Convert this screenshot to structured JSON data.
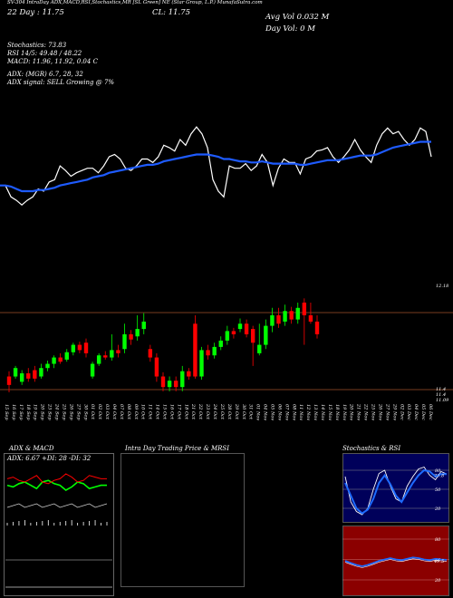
{
  "header": {
    "title_line": "SV-304 IntraDay ADX,MACD,RSI,Stochastics,MR  [SL Green] NE  (Star Group, L.P.) MunafaSutra.com",
    "date_line": "22 Day  : 11.75",
    "close": "CL: 11.75",
    "avg_vol": "Avg Vol 0.032  M",
    "day_vol": "Day Vol: 0  M"
  },
  "indicators": {
    "stochastics": "Stochastics: 73.83",
    "rsi": "RSI 14/5: 49.48 / 48.22",
    "macd": "MACD: 11.96,  11.92,  0.04   C",
    "adx": "ADX:                              (MGR) 6.7,  28,  32",
    "adx_signal": "ADX  signal: SELL  Growing @ 7%"
  },
  "price_labels": {
    "top": "12.18",
    "bottom": [
      "11.4",
      "11.4",
      "11.09"
    ]
  },
  "x_labels": [
    "15 Sep",
    "16 Sep",
    "17 Sep",
    "18 Sep",
    "19 Sep",
    "20 Sep",
    "23 Sep",
    "24 Sep",
    "25 Sep",
    "26 Sep",
    "27 Sep",
    "30 Sep",
    "01 Oct",
    "02 Oct",
    "03 Oct",
    "04 Oct",
    "07 Oct",
    "08 Oct",
    "09 Oct",
    "10 Oct",
    "11 Oct",
    "14 Oct",
    "15 Oct",
    "16 Oct",
    "17 Oct",
    "18 Oct",
    "21 Oct",
    "22 Oct",
    "23 Oct",
    "24 Oct",
    "25 Oct",
    "28 Oct",
    "29 Oct",
    "30 Oct",
    "31 Oct",
    "01 Nov",
    "04 Nov",
    "05 Nov",
    "06 Nov",
    "07 Nov",
    "08 Nov",
    "11 Nov",
    "12 Nov",
    "13 Nov",
    "14 Nov",
    "15 Nov",
    "18 Nov",
    "19 Nov",
    "20 Nov",
    "21 Nov",
    "22 Nov",
    "25 Nov",
    "26 Nov",
    "27 Nov",
    "29 Nov",
    "02 Dec",
    "03 Dec",
    "04 Dec",
    "05 Dec",
    "06 Dec"
  ],
  "panels": {
    "adx_title": "ADX  & MACD",
    "adx_text": "ADX: 6.67  +DI: 28  -DI: 32",
    "intraday_title": "Intra  Day Trading Price  & MRSI",
    "stoch_title": "Stochastics & RSI",
    "stoch_levels": [
      "80",
      "50",
      "20"
    ],
    "rsi_levels": [
      "80",
      "50",
      "20"
    ],
    "stoch_value": "73.8",
    "rsi_value": "49.5"
  },
  "colors": {
    "up": "#00ff00",
    "down": "#ff0000",
    "ma": "#1e5bff",
    "rsi_bg": "#8b0000",
    "stoch_bg": "#00005a",
    "level_line": "#a0522d"
  },
  "chart_data": {
    "type": "candlestick",
    "note_series": "price line (white) and moving average (blue)",
    "price_line": [
      11.55,
      11.55,
      11.45,
      11.42,
      11.38,
      11.42,
      11.45,
      11.52,
      11.5,
      11.58,
      11.6,
      11.72,
      11.68,
      11.63,
      11.66,
      11.68,
      11.7,
      11.7,
      11.66,
      11.72,
      11.8,
      11.82,
      11.78,
      11.7,
      11.68,
      11.72,
      11.78,
      11.78,
      11.75,
      11.8,
      11.9,
      11.88,
      11.85,
      11.95,
      11.9,
      12.0,
      12.06,
      12.0,
      11.88,
      11.6,
      11.5,
      11.45,
      11.72,
      11.7,
      11.7,
      11.74,
      11.68,
      11.72,
      11.82,
      11.75,
      11.55,
      11.7,
      11.78,
      11.75,
      11.75,
      11.65,
      11.78,
      11.8,
      11.85,
      11.86,
      11.88,
      11.8,
      11.75,
      11.8,
      11.86,
      11.95,
      11.86,
      11.8,
      11.75,
      11.9,
      12.0,
      12.05,
      12.0,
      12.02,
      11.95,
      11.9,
      11.95,
      12.05,
      12.02,
      11.8
    ],
    "ma_line": [
      11.55,
      11.55,
      11.54,
      11.52,
      11.5,
      11.5,
      11.5,
      11.51,
      11.51,
      11.52,
      11.53,
      11.55,
      11.56,
      11.57,
      11.58,
      11.59,
      11.6,
      11.62,
      11.63,
      11.64,
      11.66,
      11.67,
      11.68,
      11.69,
      11.7,
      11.71,
      11.72,
      11.73,
      11.73,
      11.74,
      11.76,
      11.77,
      11.78,
      11.79,
      11.8,
      11.81,
      11.82,
      11.82,
      11.82,
      11.81,
      11.8,
      11.78,
      11.78,
      11.77,
      11.76,
      11.76,
      11.75,
      11.75,
      11.76,
      11.75,
      11.74,
      11.74,
      11.74,
      11.74,
      11.74,
      11.73,
      11.73,
      11.74,
      11.75,
      11.76,
      11.77,
      11.77,
      11.77,
      11.78,
      11.79,
      11.8,
      11.81,
      11.81,
      11.81,
      11.82,
      11.84,
      11.86,
      11.88,
      11.89,
      11.9,
      11.91,
      11.92,
      11.93,
      11.93,
      11.93
    ],
    "candles": [
      {
        "o": 11.3,
        "c": 11.22,
        "h": 11.35,
        "l": 11.15
      },
      {
        "o": 11.3,
        "c": 11.38,
        "h": 11.4,
        "l": 11.28
      },
      {
        "o": 11.25,
        "c": 11.33,
        "h": 11.36,
        "l": 11.22
      },
      {
        "o": 11.33,
        "c": 11.28,
        "h": 11.38,
        "l": 11.25
      },
      {
        "o": 11.36,
        "c": 11.28,
        "h": 11.4,
        "l": 11.25
      },
      {
        "o": 11.3,
        "c": 11.38,
        "h": 11.42,
        "l": 11.28
      },
      {
        "o": 11.38,
        "c": 11.42,
        "h": 11.45,
        "l": 11.35
      },
      {
        "o": 11.42,
        "c": 11.48,
        "h": 11.5,
        "l": 11.38
      },
      {
        "o": 11.48,
        "c": 11.44,
        "h": 11.52,
        "l": 11.42
      },
      {
        "o": 11.46,
        "c": 11.53,
        "h": 11.56,
        "l": 11.44
      },
      {
        "o": 11.53,
        "c": 11.6,
        "h": 11.62,
        "l": 11.5
      },
      {
        "o": 11.6,
        "c": 11.55,
        "h": 11.63,
        "l": 11.52
      },
      {
        "o": 11.62,
        "c": 11.52,
        "h": 11.66,
        "l": 11.48
      },
      {
        "o": 11.3,
        "c": 11.42,
        "h": 11.44,
        "l": 11.28
      },
      {
        "o": 11.42,
        "c": 11.5,
        "h": 11.52,
        "l": 11.4
      },
      {
        "o": 11.5,
        "c": 11.48,
        "h": 11.54,
        "l": 11.46
      },
      {
        "o": 11.48,
        "c": 11.55,
        "h": 11.7,
        "l": 11.45
      },
      {
        "o": 11.55,
        "c": 11.52,
        "h": 11.6,
        "l": 11.48
      },
      {
        "o": 11.56,
        "c": 11.7,
        "h": 11.8,
        "l": 11.52
      },
      {
        "o": 11.7,
        "c": 11.65,
        "h": 11.74,
        "l": 11.6
      },
      {
        "o": 11.68,
        "c": 11.75,
        "h": 11.88,
        "l": 11.64
      },
      {
        "o": 11.75,
        "c": 11.82,
        "h": 11.9,
        "l": 11.7
      },
      {
        "o": 11.56,
        "c": 11.48,
        "h": 11.6,
        "l": 11.44
      },
      {
        "o": 11.48,
        "c": 11.3,
        "h": 11.52,
        "l": 11.25
      },
      {
        "o": 11.3,
        "c": 11.2,
        "h": 11.34,
        "l": 11.16
      },
      {
        "o": 11.2,
        "c": 11.26,
        "h": 11.3,
        "l": 11.16
      },
      {
        "o": 11.26,
        "c": 11.2,
        "h": 11.3,
        "l": 11.16
      },
      {
        "o": 11.2,
        "c": 11.35,
        "h": 11.4,
        "l": 11.16
      },
      {
        "o": 11.35,
        "c": 11.3,
        "h": 11.38,
        "l": 11.27
      },
      {
        "o": 11.8,
        "c": 11.3,
        "h": 11.88,
        "l": 11.28
      },
      {
        "o": 11.3,
        "c": 11.55,
        "h": 11.58,
        "l": 11.27
      },
      {
        "o": 11.55,
        "c": 11.5,
        "h": 11.6,
        "l": 11.46
      },
      {
        "o": 11.5,
        "c": 11.58,
        "h": 11.62,
        "l": 11.47
      },
      {
        "o": 11.58,
        "c": 11.64,
        "h": 11.68,
        "l": 11.55
      },
      {
        "o": 11.64,
        "c": 11.73,
        "h": 11.78,
        "l": 11.6
      },
      {
        "o": 11.73,
        "c": 11.7,
        "h": 11.76,
        "l": 11.66
      },
      {
        "o": 11.75,
        "c": 11.8,
        "h": 11.85,
        "l": 11.72
      },
      {
        "o": 11.8,
        "c": 11.7,
        "h": 11.84,
        "l": 11.67
      },
      {
        "o": 11.75,
        "c": 11.62,
        "h": 11.78,
        "l": 11.4
      },
      {
        "o": 11.52,
        "c": 11.6,
        "h": 11.8,
        "l": 11.5
      },
      {
        "o": 11.6,
        "c": 11.78,
        "h": 11.84,
        "l": 11.56
      },
      {
        "o": 11.78,
        "c": 11.88,
        "h": 11.95,
        "l": 11.72
      },
      {
        "o": 11.88,
        "c": 11.8,
        "h": 11.95,
        "l": 11.76
      },
      {
        "o": 11.82,
        "c": 11.92,
        "h": 11.98,
        "l": 11.78
      },
      {
        "o": 11.92,
        "c": 11.84,
        "h": 11.96,
        "l": 11.8
      },
      {
        "o": 11.84,
        "c": 11.95,
        "h": 12.0,
        "l": 11.8
      },
      {
        "o": 12.0,
        "c": 11.88,
        "h": 12.04,
        "l": 11.6
      },
      {
        "o": 11.88,
        "c": 11.82,
        "h": 12.0,
        "l": 11.8
      },
      {
        "o": 11.82,
        "c": 11.7,
        "h": 11.88,
        "l": 11.66
      }
    ],
    "adx_plus": [
      28,
      27,
      29,
      30,
      28,
      26,
      30,
      31,
      29,
      28,
      25,
      27,
      30,
      29,
      26,
      27,
      28,
      28
    ],
    "adx_minus": [
      32,
      33,
      31,
      30,
      32,
      34,
      30,
      29,
      31,
      32,
      35,
      33,
      30,
      31,
      34,
      33,
      32,
      32
    ],
    "adx_value": 6.67,
    "stoch_series": [
      60,
      40,
      20,
      12,
      18,
      35,
      60,
      72,
      58,
      40,
      30,
      45,
      60,
      72,
      80,
      78,
      70,
      74,
      73.8
    ],
    "stoch_fast": [
      70,
      30,
      15,
      10,
      20,
      50,
      75,
      80,
      55,
      35,
      30,
      55,
      70,
      82,
      85,
      72,
      65,
      78,
      74
    ],
    "rsi_series": [
      48,
      45,
      42,
      40,
      42,
      45,
      48,
      50,
      52,
      50,
      49,
      51,
      53,
      52,
      50,
      49,
      51,
      50,
      49.48
    ]
  }
}
